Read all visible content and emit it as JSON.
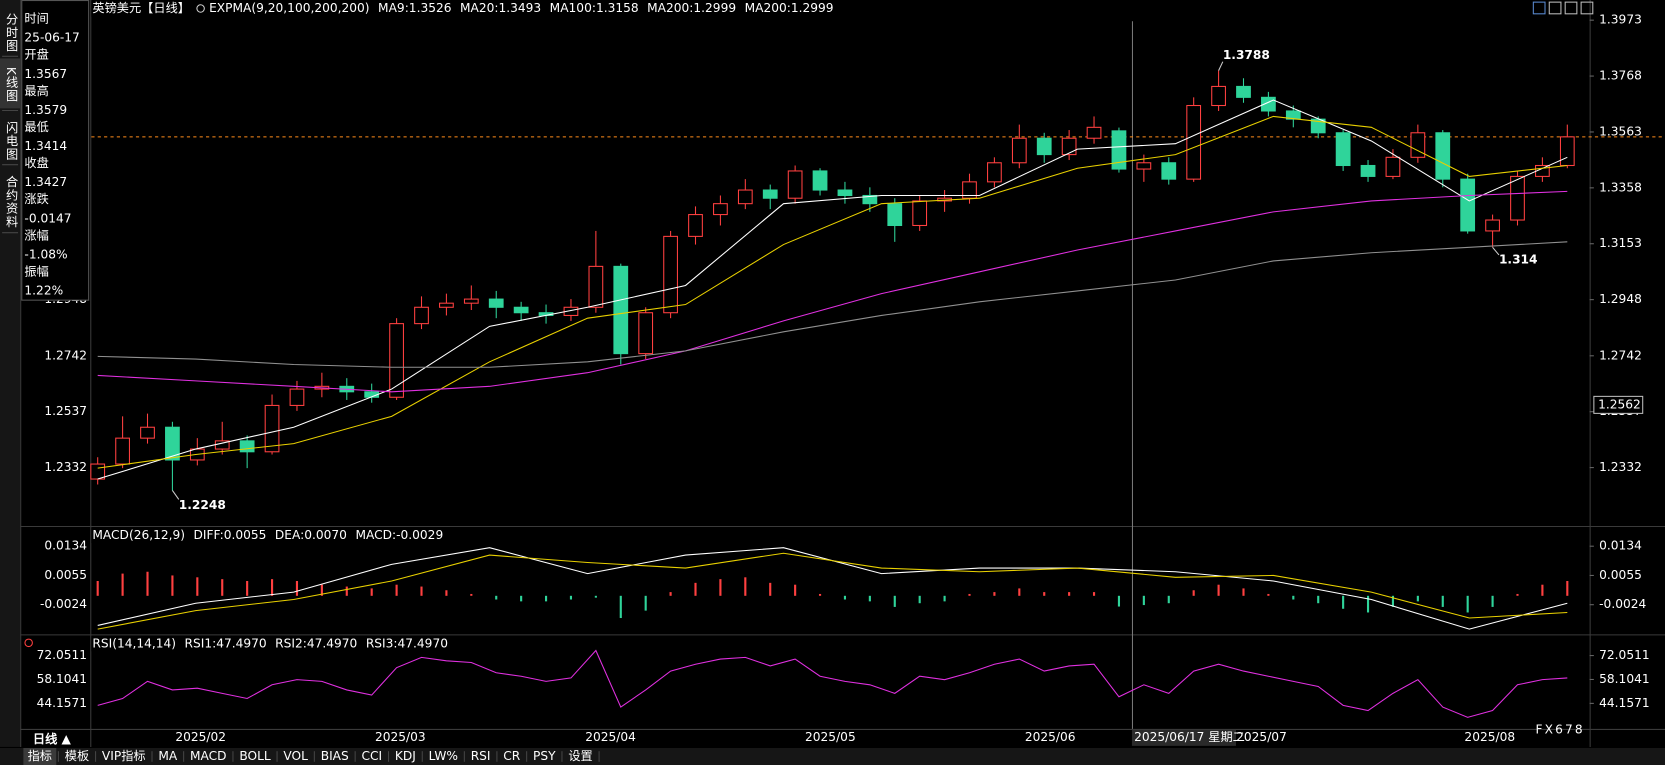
{
  "sidebar_tabs": [
    "分时图",
    "K线图",
    "闪电图",
    "合约资料"
  ],
  "info": [
    {
      "label": "时间",
      "value": "25-06-17",
      "color": "#ffffff"
    },
    {
      "label": "开盘",
      "value": "1.3567",
      "color": "#2fd49a"
    },
    {
      "label": "最高",
      "value": "1.3579",
      "color": "#ff4040"
    },
    {
      "label": "最低",
      "value": "1.3414",
      "color": "#2fd49a"
    },
    {
      "label": "收盘",
      "value": "1.3427",
      "color": "#2fd49a"
    },
    {
      "label": "涨跌",
      "value": "-0.0147",
      "color": "#2fd49a"
    },
    {
      "label": "涨幅",
      "value": "-1.08%",
      "color": "#2fd49a"
    },
    {
      "label": "振幅",
      "value": "1.22%",
      "color": "#ffffff"
    }
  ],
  "chart_data": [
    {
      "type": "candlestick",
      "title": "英镑美元【日线】",
      "indicator": "EXPMA(9,20,100,200,200)",
      "up_color": "#ff4040",
      "down_color": "#2fd49a",
      "ylim": [
        1.2118,
        1.4047
      ],
      "yticks": [
        1.2332,
        1.2537,
        1.2742,
        1.2948,
        1.3153,
        1.3358,
        1.3563,
        1.3768,
        1.3973
      ],
      "last_price": 1.3545,
      "crosshair_price": 1.2562,
      "candles": [
        [
          1.229,
          1.237,
          1.227,
          1.2345
        ],
        [
          1.2345,
          1.252,
          1.233,
          1.244
        ],
        [
          1.244,
          1.253,
          1.242,
          1.248
        ],
        [
          1.248,
          1.25,
          1.2248,
          1.236
        ],
        [
          1.236,
          1.244,
          1.234,
          1.24
        ],
        [
          1.24,
          1.25,
          1.238,
          1.243
        ],
        [
          1.243,
          1.245,
          1.233,
          1.239
        ],
        [
          1.239,
          1.26,
          1.238,
          1.256
        ],
        [
          1.256,
          1.265,
          1.254,
          1.262
        ],
        [
          1.262,
          1.268,
          1.259,
          1.263
        ],
        [
          1.263,
          1.266,
          1.258,
          1.261
        ],
        [
          1.261,
          1.264,
          1.257,
          1.259
        ],
        [
          1.259,
          1.288,
          1.258,
          1.286
        ],
        [
          1.286,
          1.296,
          1.284,
          1.292
        ],
        [
          1.292,
          1.297,
          1.289,
          1.2935
        ],
        [
          1.2935,
          1.3,
          1.291,
          1.295
        ],
        [
          1.295,
          1.298,
          1.288,
          1.292
        ],
        [
          1.292,
          1.294,
          1.287,
          1.29
        ],
        [
          1.29,
          1.293,
          1.286,
          1.289
        ],
        [
          1.289,
          1.295,
          1.287,
          1.292
        ],
        [
          1.292,
          1.32,
          1.29,
          1.307
        ],
        [
          1.307,
          1.308,
          1.271,
          1.275
        ],
        [
          1.275,
          1.292,
          1.273,
          1.29
        ],
        [
          1.29,
          1.32,
          1.288,
          1.318
        ],
        [
          1.318,
          1.329,
          1.315,
          1.326
        ],
        [
          1.326,
          1.333,
          1.322,
          1.33
        ],
        [
          1.33,
          1.339,
          1.328,
          1.335
        ],
        [
          1.335,
          1.337,
          1.328,
          1.332
        ],
        [
          1.332,
          1.344,
          1.33,
          1.342
        ],
        [
          1.342,
          1.343,
          1.333,
          1.335
        ],
        [
          1.335,
          1.338,
          1.33,
          1.333
        ],
        [
          1.333,
          1.336,
          1.327,
          1.33
        ],
        [
          1.33,
          1.332,
          1.316,
          1.322
        ],
        [
          1.322,
          1.333,
          1.32,
          1.331
        ],
        [
          1.331,
          1.335,
          1.327,
          1.332
        ],
        [
          1.332,
          1.341,
          1.33,
          1.338
        ],
        [
          1.338,
          1.347,
          1.336,
          1.345
        ],
        [
          1.345,
          1.359,
          1.343,
          1.354
        ],
        [
          1.354,
          1.356,
          1.345,
          1.348
        ],
        [
          1.348,
          1.357,
          1.346,
          1.354
        ],
        [
          1.354,
          1.362,
          1.352,
          1.358
        ],
        [
          1.3567,
          1.3579,
          1.3414,
          1.3427
        ],
        [
          1.3427,
          1.348,
          1.338,
          1.345
        ],
        [
          1.345,
          1.347,
          1.337,
          1.339
        ],
        [
          1.339,
          1.369,
          1.338,
          1.366
        ],
        [
          1.366,
          1.3788,
          1.364,
          1.373
        ],
        [
          1.373,
          1.376,
          1.367,
          1.369
        ],
        [
          1.369,
          1.371,
          1.362,
          1.364
        ],
        [
          1.364,
          1.366,
          1.358,
          1.361
        ],
        [
          1.361,
          1.362,
          1.354,
          1.356
        ],
        [
          1.356,
          1.357,
          1.342,
          1.344
        ],
        [
          1.344,
          1.346,
          1.338,
          1.34
        ],
        [
          1.34,
          1.35,
          1.339,
          1.347
        ],
        [
          1.347,
          1.359,
          1.345,
          1.356
        ],
        [
          1.356,
          1.357,
          1.336,
          1.339
        ],
        [
          1.339,
          1.341,
          1.319,
          1.32
        ],
        [
          1.32,
          1.326,
          1.314,
          1.324
        ],
        [
          1.324,
          1.342,
          1.322,
          1.34
        ],
        [
          1.34,
          1.347,
          1.338,
          1.344
        ],
        [
          1.344,
          1.359,
          1.343,
          1.3545
        ]
      ],
      "series": [
        {
          "name": "MA9:1.3526",
          "color": "#ffffff",
          "values": [
            1.229,
            1.24,
            1.248,
            1.262,
            1.285,
            1.292,
            1.3,
            1.33,
            1.333,
            1.333,
            1.35,
            1.352,
            1.368,
            1.353,
            1.331,
            1.347
          ]
        },
        {
          "name": "MA20:1.3493",
          "color": "#e8d000",
          "values": [
            1.233,
            1.238,
            1.242,
            1.252,
            1.272,
            1.288,
            1.293,
            1.315,
            1.33,
            1.332,
            1.343,
            1.348,
            1.362,
            1.358,
            1.34,
            1.344
          ]
        },
        {
          "name": "MA100:1.3158",
          "color": "#e030e0",
          "values": [
            1.267,
            1.265,
            1.263,
            1.261,
            1.263,
            1.268,
            1.276,
            1.287,
            1.297,
            1.305,
            1.313,
            1.32,
            1.327,
            1.331,
            1.333,
            1.3345
          ]
        },
        {
          "name": "MA200:1.2999",
          "color": "#30d030",
          "values": []
        },
        {
          "name": "MA200:1.2999",
          "color": "#909090",
          "values": [
            1.274,
            1.273,
            1.271,
            1.27,
            1.27,
            1.272,
            1.276,
            1.283,
            1.289,
            1.294,
            1.298,
            1.302,
            1.309,
            1.312,
            1.314,
            1.316
          ]
        }
      ]
    },
    {
      "type": "macd",
      "title": "MACD(26,12,9)",
      "ylim": [
        -0.0104,
        0.0183
      ],
      "yticks": [
        -0.0024,
        0.0055,
        0.0134
      ],
      "series": [
        {
          "name": "DIFF:0.0055",
          "color": "#ffffff",
          "values": [
            -0.008,
            -0.002,
            0.001,
            0.0085,
            0.013,
            0.006,
            0.011,
            0.013,
            0.006,
            0.0075,
            0.0075,
            0.0065,
            0.004,
            -0.001,
            -0.009,
            -0.002
          ]
        },
        {
          "name": "DEA:0.0070",
          "color": "#e8d000",
          "values": [
            -0.009,
            -0.004,
            -0.001,
            0.004,
            0.011,
            0.009,
            0.0075,
            0.0115,
            0.0075,
            0.0065,
            0.0075,
            0.005,
            0.0055,
            0.001,
            -0.006,
            -0.0045
          ]
        }
      ],
      "histogram": {
        "name": "MACD:-0.0029",
        "color": "#e030e0",
        "up_color": "#ff4040",
        "down_color": "#2fd49a",
        "values": [
          0.004,
          0.006,
          0.0065,
          0.0055,
          0.005,
          0.0045,
          0.004,
          0.0045,
          0.004,
          0.003,
          0.0025,
          0.002,
          0.003,
          0.0025,
          0.0015,
          0.0005,
          -0.001,
          -0.0015,
          -0.0015,
          -0.001,
          -0.0005,
          -0.006,
          -0.004,
          0.001,
          0.0035,
          0.0045,
          0.005,
          0.0035,
          0.003,
          0.0005,
          -0.001,
          -0.0015,
          -0.003,
          -0.002,
          -0.0015,
          0.0005,
          0.001,
          0.002,
          0.001,
          0.001,
          0.001,
          -0.0029,
          -0.0025,
          -0.002,
          0.0015,
          0.003,
          0.002,
          0.0005,
          -0.001,
          -0.002,
          -0.0035,
          -0.0045,
          -0.003,
          -0.0015,
          -0.003,
          -0.0045,
          -0.003,
          0.0005,
          0.003,
          0.004
        ]
      }
    },
    {
      "type": "rsi",
      "title": "RSI(14,14,14)",
      "ylim": [
        29.28,
        82.59
      ],
      "yticks": [
        44.1571,
        58.1041,
        72.0511
      ],
      "series": [
        {
          "name": "RSI1:47.4970",
          "color": "#ffffff"
        },
        {
          "name": "RSI2:47.4970",
          "color": "#e8d000"
        },
        {
          "name": "RSI3:47.4970",
          "color": "#e030e0"
        }
      ],
      "line_color": "#e030e0",
      "values": [
        43,
        47,
        57,
        52,
        53,
        50,
        47,
        55,
        58,
        57,
        52,
        49,
        65,
        71,
        69,
        68,
        62,
        60,
        57,
        59,
        75,
        42,
        52,
        63,
        67,
        70,
        71,
        66,
        70,
        60,
        57,
        55,
        50,
        60,
        58,
        62,
        67,
        70,
        63,
        66,
        67,
        48,
        55,
        50,
        63,
        67,
        63,
        60,
        57,
        54,
        43,
        40,
        50,
        58,
        42,
        36,
        40,
        55,
        58,
        59
      ]
    }
  ],
  "x_axis": {
    "labels": [
      "2025/02",
      "2025/03",
      "2025/04",
      "2025/05",
      "2025/06",
      "2025/07",
      "2025/08"
    ],
    "crosshair_label": "2025/06/17 星期二"
  },
  "bottom_bar": {
    "period": "日线 ▲",
    "tabs": [
      "指标",
      "模板",
      "VIP指标",
      "MA",
      "MACD",
      "BOLL",
      "VOL",
      "BIAS",
      "CCI",
      "KDJ",
      "LW%",
      "RSI",
      "CR",
      "PSY",
      "设置"
    ]
  },
  "watermark": "FX678"
}
